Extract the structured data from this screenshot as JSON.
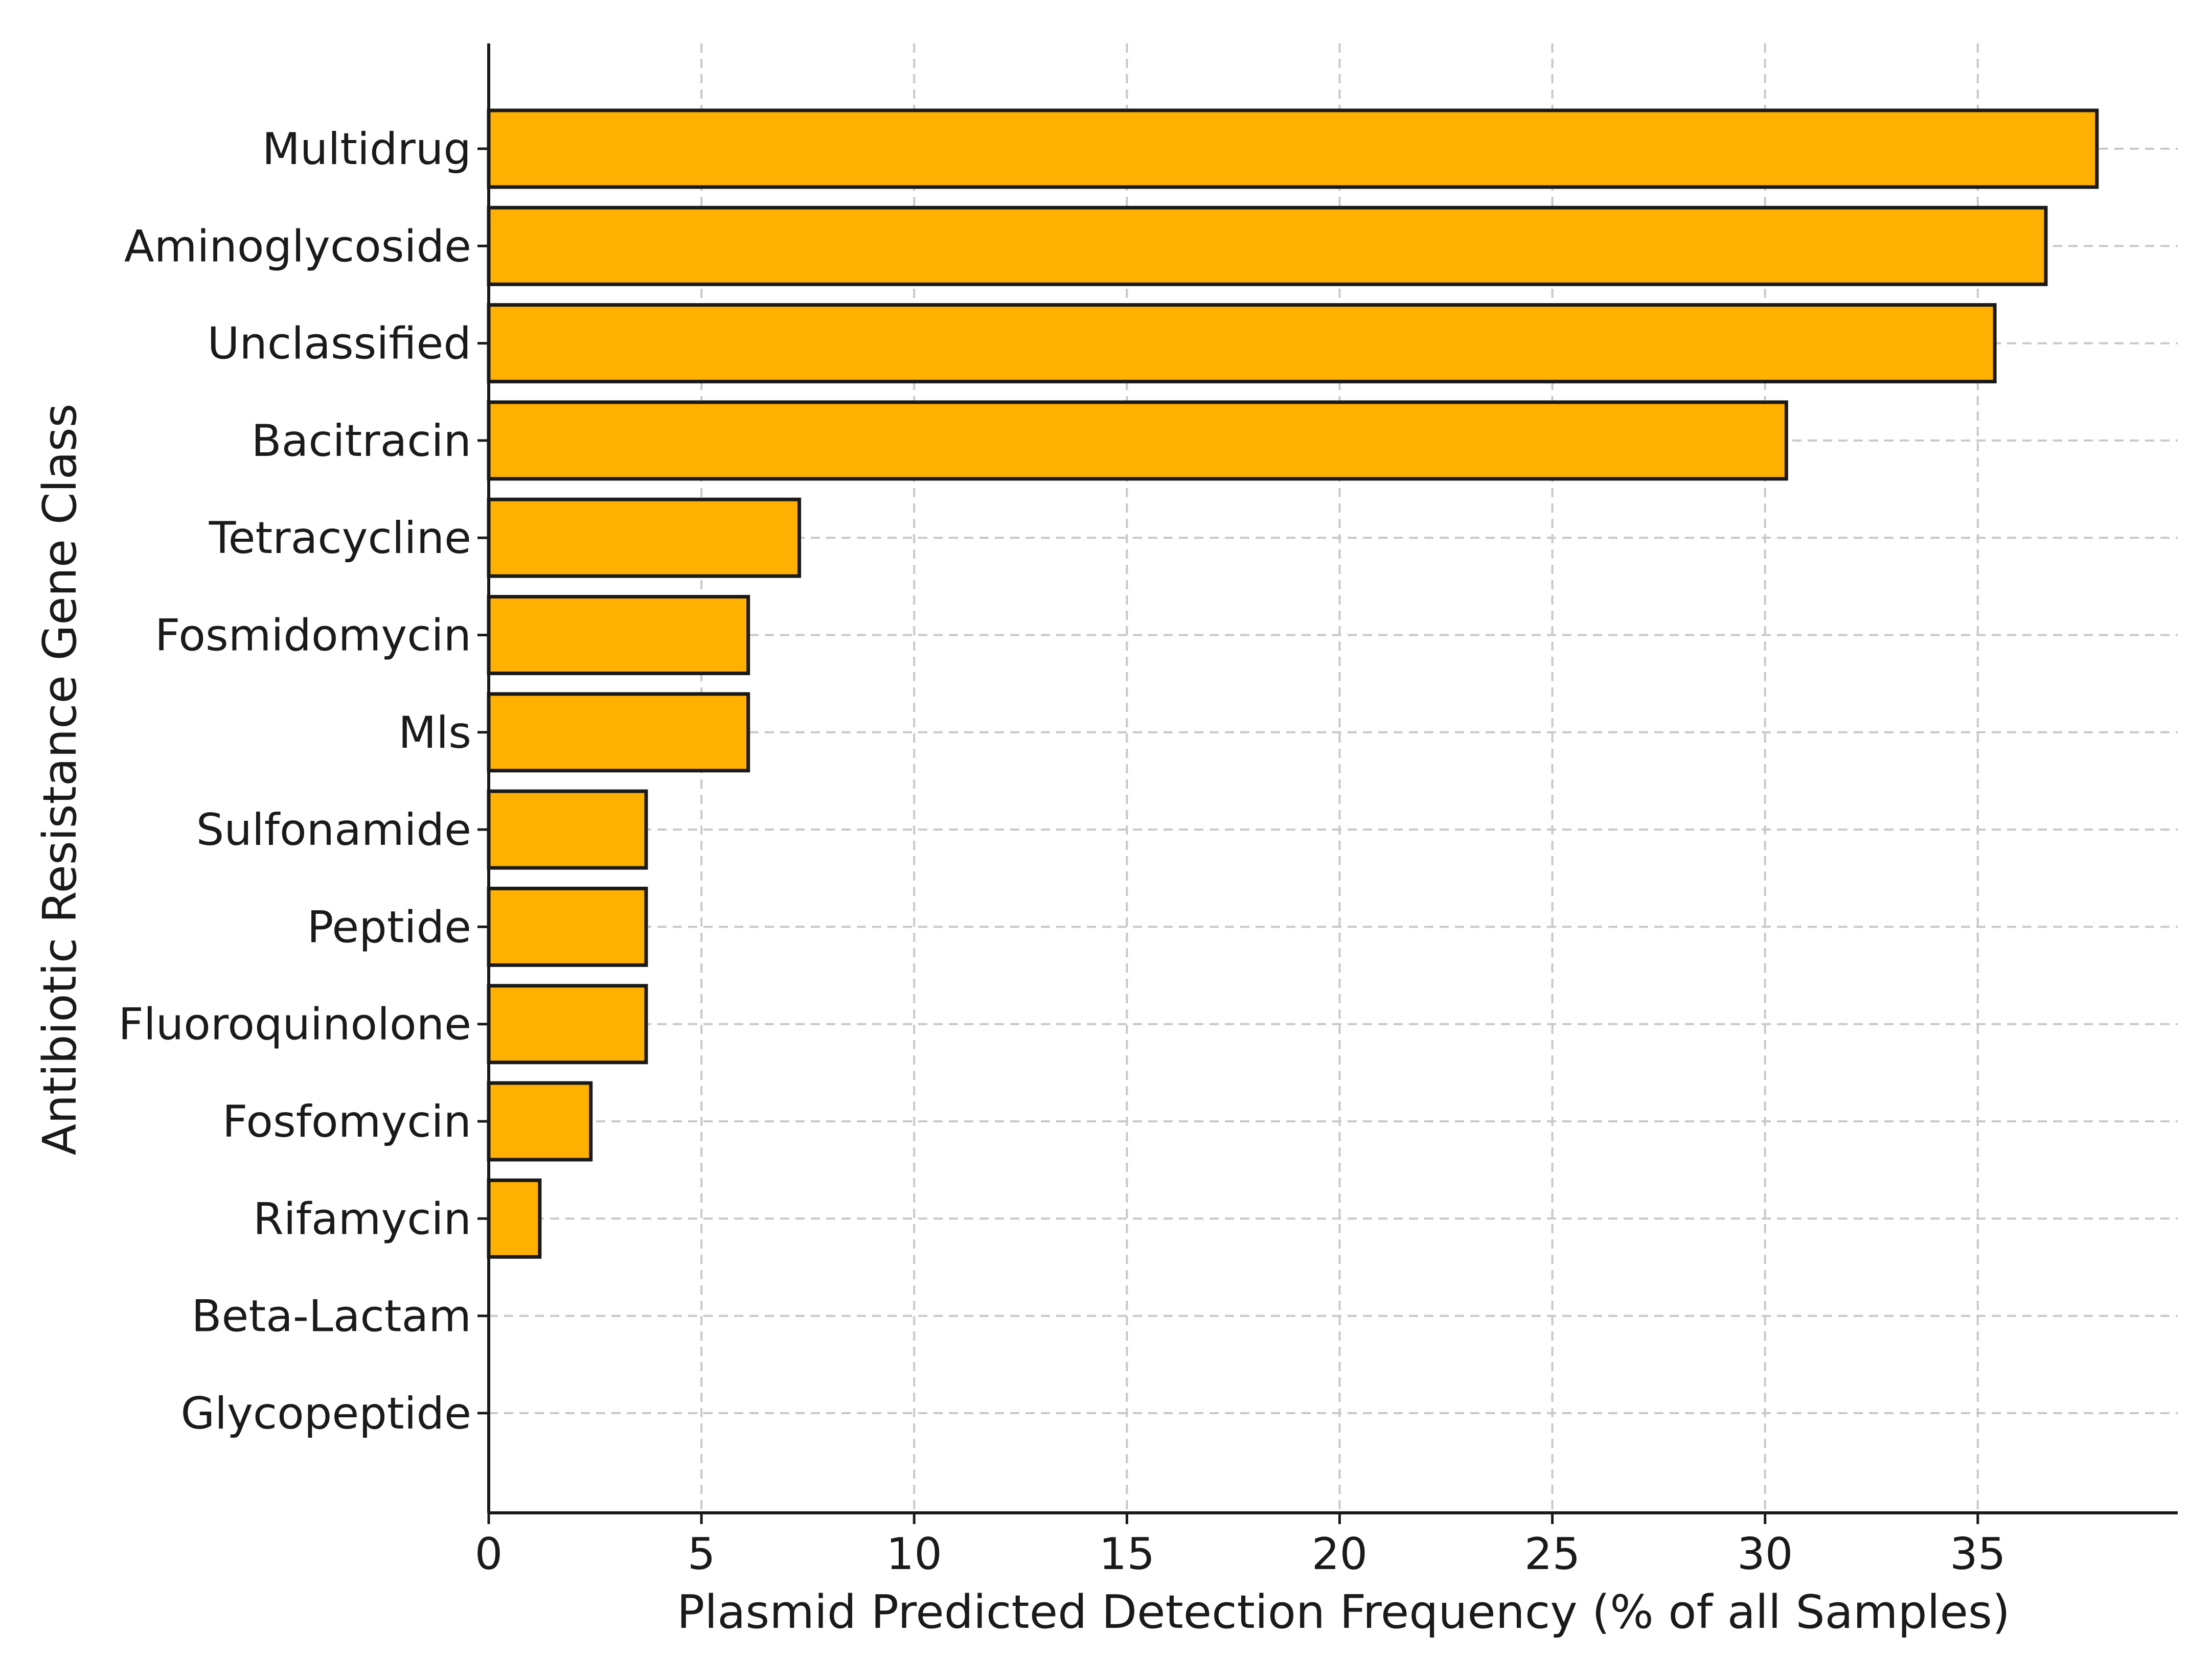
{
  "chart_data": {
    "type": "bar",
    "orientation": "horizontal",
    "categories": [
      "Multidrug",
      "Aminoglycoside",
      "Unclassified",
      "Bacitracin",
      "Tetracycline",
      "Fosmidomycin",
      "Mls",
      "Sulfonamide",
      "Peptide",
      "Fluoroquinolone",
      "Fosfomycin",
      "Rifamycin",
      "Beta-Lactam",
      "Glycopeptide"
    ],
    "values": [
      37.8,
      36.6,
      35.4,
      30.5,
      7.3,
      6.1,
      6.1,
      3.7,
      3.7,
      3.7,
      2.4,
      1.2,
      0,
      0
    ],
    "title": "",
    "xlabel": "Plasmid Predicted Detection Frequency (% of all Samples)",
    "ylabel": "Antibiotic Resistance Gene Class",
    "xlim": [
      0,
      39.7
    ],
    "xticks": [
      "0",
      "5",
      "10",
      "15",
      "20",
      "25",
      "30",
      "35"
    ],
    "grid": true,
    "legend": "none",
    "bar_color": "#FFB000",
    "edge_color": "#1a1a1a"
  }
}
